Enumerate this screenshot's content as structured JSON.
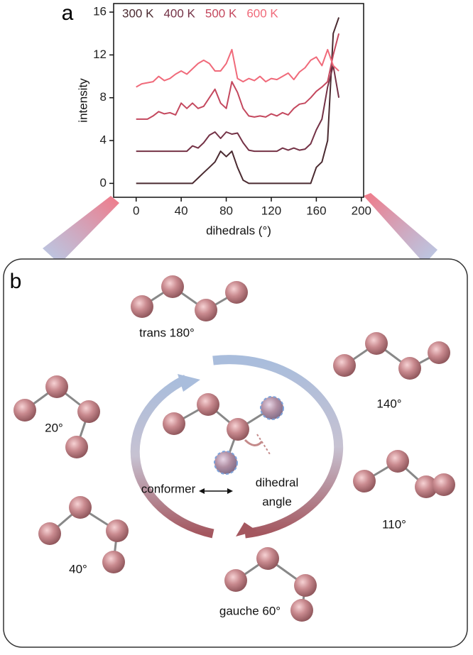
{
  "panels": {
    "a": "a",
    "b": "b"
  },
  "chart_data": {
    "type": "line",
    "xlabel": "dihedrals (°)",
    "ylabel": "intensity",
    "x": [
      0,
      5,
      10,
      15,
      20,
      25,
      30,
      35,
      40,
      45,
      50,
      55,
      60,
      65,
      70,
      75,
      80,
      85,
      90,
      95,
      100,
      105,
      110,
      115,
      120,
      125,
      130,
      135,
      140,
      145,
      150,
      155,
      160,
      165,
      170,
      175,
      180
    ],
    "series": [
      {
        "name": "300 K",
        "color": "#4a2a30",
        "values": [
          0,
          0,
          0,
          0,
          0,
          0,
          0,
          0,
          0,
          0,
          0,
          0.5,
          1,
          1.5,
          2,
          3,
          2.5,
          3,
          1.5,
          0.3,
          0,
          0,
          0,
          0,
          0,
          0,
          0,
          0,
          0,
          0,
          0,
          0,
          1.5,
          2,
          4,
          14,
          15.5
        ]
      },
      {
        "name": "400 K",
        "color": "#743246",
        "values": [
          3,
          3,
          3,
          3,
          3,
          3,
          3,
          3,
          3,
          3,
          3.5,
          3.3,
          3.8,
          4.5,
          4.8,
          4.2,
          4.8,
          4.6,
          4.7,
          3.8,
          3.1,
          3,
          3,
          3,
          3,
          3,
          3.3,
          3.1,
          3.3,
          3.1,
          3.2,
          3.7,
          5,
          6,
          9,
          11,
          8
        ]
      },
      {
        "name": "500 K",
        "color": "#c4485e",
        "values": [
          6,
          6,
          6,
          6.3,
          6.7,
          6.5,
          6.6,
          6.4,
          7.5,
          7,
          7.5,
          7,
          7.2,
          8,
          8.8,
          7.5,
          7,
          9.5,
          8.5,
          7,
          6.3,
          6.2,
          6.3,
          6.2,
          6.5,
          6.3,
          6.6,
          6.4,
          7,
          7.4,
          7.5,
          8,
          8.6,
          9,
          9.5,
          12,
          14
        ]
      },
      {
        "name": "600 K",
        "color": "#f06a7a",
        "values": [
          9,
          9.3,
          9.4,
          9.5,
          10,
          9.6,
          9.8,
          10.2,
          10.5,
          10.2,
          10.7,
          11.2,
          11.5,
          11.2,
          10.5,
          10.5,
          11.2,
          12.5,
          9.8,
          9.5,
          9.8,
          9.6,
          10,
          9.5,
          9.8,
          9.7,
          10,
          10.3,
          9.7,
          10.4,
          10.8,
          11.5,
          11.8,
          11,
          12.5,
          11,
          10.5
        ]
      }
    ],
    "xlim": [
      -20,
      202
    ],
    "ylim": [
      -1.3,
      16.8
    ],
    "xticks": [
      0,
      40,
      80,
      120,
      160,
      200
    ],
    "yticks": [
      0,
      4,
      8,
      12,
      16
    ]
  },
  "diagram": {
    "conformers": [
      {
        "label": "trans 180°"
      },
      {
        "label": "140°"
      },
      {
        "label": "20°"
      },
      {
        "label": "110°"
      },
      {
        "label": "40°"
      },
      {
        "label": "gauche 60°"
      }
    ],
    "center": {
      "left": "conformer",
      "right": [
        "dihedral",
        "angle"
      ]
    }
  }
}
